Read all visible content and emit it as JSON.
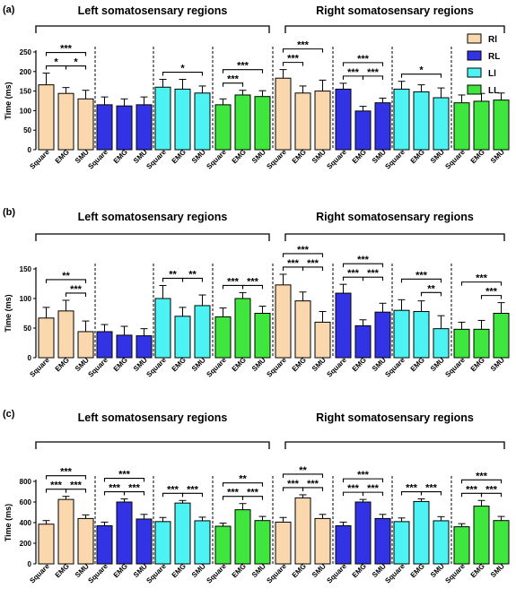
{
  "region_labels": {
    "left": "Left somatosensary regions",
    "right": "Right somatosensary regions"
  },
  "legend": [
    {
      "name": "Rl",
      "color": "#FAD7AC"
    },
    {
      "name": "RL",
      "color": "#3333E6"
    },
    {
      "name": "Ll",
      "color": "#4DF2F2"
    },
    {
      "name": "LL",
      "color": "#3EE63E"
    }
  ],
  "chart_data": [
    {
      "panel": "(a)",
      "type": "bar",
      "ylabel": "Time (ms)",
      "ylim": [
        0,
        250
      ],
      "yticks": [
        0,
        50,
        100,
        150,
        200,
        250
      ],
      "categories": [
        "Square",
        "EMG",
        "SMU"
      ],
      "groups": [
        {
          "series": "Rl",
          "side": "left",
          "values": [
            166,
            144,
            130
          ],
          "errors": [
            30,
            15,
            22
          ],
          "sig": [
            {
              "from": 0,
              "to": 2,
              "label": "***"
            },
            {
              "from": 0,
              "to": 1,
              "label": "*"
            },
            {
              "from": 1,
              "to": 2,
              "label": "*"
            }
          ]
        },
        {
          "series": "RL",
          "side": "left",
          "values": [
            115,
            112,
            115
          ],
          "errors": [
            20,
            18,
            20
          ],
          "sig": []
        },
        {
          "series": "Ll",
          "side": "left",
          "values": [
            160,
            155,
            145
          ],
          "errors": [
            20,
            25,
            18
          ],
          "sig": [
            {
              "from": 0,
              "to": 2,
              "label": "*"
            }
          ]
        },
        {
          "series": "LL",
          "side": "left",
          "values": [
            115,
            140,
            136
          ],
          "errors": [
            15,
            12,
            15
          ],
          "sig": [
            {
              "from": 0,
              "to": 2,
              "label": "***"
            },
            {
              "from": 0,
              "to": 1,
              "label": "***"
            }
          ]
        },
        {
          "series": "Rl",
          "side": "right",
          "values": [
            183,
            145,
            150
          ],
          "errors": [
            22,
            18,
            28
          ],
          "sig": [
            {
              "from": 0,
              "to": 2,
              "label": "***"
            },
            {
              "from": 0,
              "to": 1,
              "label": "***"
            }
          ]
        },
        {
          "series": "RL",
          "side": "right",
          "values": [
            155,
            99,
            120
          ],
          "errors": [
            15,
            12,
            12
          ],
          "sig": [
            {
              "from": 0,
              "to": 2,
              "label": "***"
            },
            {
              "from": 0,
              "to": 1,
              "label": "***"
            },
            {
              "from": 1,
              "to": 2,
              "label": "***"
            }
          ]
        },
        {
          "series": "Ll",
          "side": "right",
          "values": [
            155,
            148,
            133
          ],
          "errors": [
            20,
            18,
            25
          ],
          "sig": [
            {
              "from": 0,
              "to": 2,
              "label": "*"
            }
          ]
        },
        {
          "series": "LL",
          "side": "right",
          "values": [
            120,
            124,
            127
          ],
          "errors": [
            20,
            20,
            18
          ],
          "sig": []
        }
      ]
    },
    {
      "panel": "(b)",
      "type": "bar",
      "ylabel": "Time (ms)",
      "ylim": [
        0,
        150
      ],
      "yticks": [
        0,
        50,
        100,
        150
      ],
      "categories": [
        "Square",
        "EMG",
        "SMU"
      ],
      "groups": [
        {
          "series": "Rl",
          "side": "left",
          "values": [
            67,
            79,
            44
          ],
          "errors": [
            18,
            18,
            18
          ],
          "sig": [
            {
              "from": 0,
              "to": 2,
              "label": "**"
            },
            {
              "from": 1,
              "to": 2,
              "label": "***"
            }
          ]
        },
        {
          "series": "RL",
          "side": "left",
          "values": [
            44,
            38,
            37
          ],
          "errors": [
            12,
            15,
            12
          ],
          "sig": []
        },
        {
          "series": "Ll",
          "side": "left",
          "values": [
            100,
            70,
            88
          ],
          "errors": [
            22,
            15,
            18
          ],
          "sig": [
            {
              "from": 0,
              "to": 1,
              "label": "**"
            },
            {
              "from": 1,
              "to": 2,
              "label": "**"
            }
          ]
        },
        {
          "series": "LL",
          "side": "left",
          "values": [
            69,
            100,
            75
          ],
          "errors": [
            15,
            10,
            12
          ],
          "sig": [
            {
              "from": 0,
              "to": 1,
              "label": "***"
            },
            {
              "from": 1,
              "to": 2,
              "label": "***"
            }
          ]
        },
        {
          "series": "Rl",
          "side": "right",
          "values": [
            123,
            96,
            60
          ],
          "errors": [
            18,
            15,
            18
          ],
          "sig": [
            {
              "from": 0,
              "to": 2,
              "label": "***"
            },
            {
              "from": 0,
              "to": 1,
              "label": "***"
            },
            {
              "from": 1,
              "to": 2,
              "label": "***"
            }
          ]
        },
        {
          "series": "RL",
          "side": "right",
          "values": [
            109,
            54,
            77
          ],
          "errors": [
            15,
            10,
            15
          ],
          "sig": [
            {
              "from": 0,
              "to": 2,
              "label": "***"
            },
            {
              "from": 0,
              "to": 1,
              "label": "***"
            },
            {
              "from": 1,
              "to": 2,
              "label": "***"
            }
          ]
        },
        {
          "series": "Ll",
          "side": "right",
          "values": [
            80,
            78,
            49
          ],
          "errors": [
            18,
            18,
            22
          ],
          "sig": [
            {
              "from": 0,
              "to": 2,
              "label": "***"
            },
            {
              "from": 1,
              "to": 2,
              "label": "**"
            }
          ]
        },
        {
          "series": "LL",
          "side": "right",
          "values": [
            48,
            48,
            75
          ],
          "errors": [
            12,
            15,
            18
          ],
          "sig": [
            {
              "from": 0,
              "to": 2,
              "label": "***"
            },
            {
              "from": 1,
              "to": 2,
              "label": "***"
            }
          ]
        }
      ]
    },
    {
      "panel": "(c)",
      "type": "bar",
      "ylabel": "Time (ms)",
      "ylim": [
        0,
        800
      ],
      "yticks": [
        0,
        200,
        400,
        600,
        800
      ],
      "categories": [
        "Square",
        "EMG",
        "SMU"
      ],
      "groups": [
        {
          "series": "Rl",
          "side": "left",
          "values": [
            385,
            625,
            440
          ],
          "errors": [
            35,
            30,
            35
          ],
          "sig": [
            {
              "from": 0,
              "to": 2,
              "label": "***"
            },
            {
              "from": 0,
              "to": 1,
              "label": "***"
            },
            {
              "from": 1,
              "to": 2,
              "label": "***"
            }
          ]
        },
        {
          "series": "RL",
          "side": "left",
          "values": [
            370,
            600,
            435
          ],
          "errors": [
            35,
            30,
            45
          ],
          "sig": [
            {
              "from": 0,
              "to": 2,
              "label": "***"
            },
            {
              "from": 0,
              "to": 1,
              "label": "***"
            },
            {
              "from": 1,
              "to": 2,
              "label": "***"
            }
          ]
        },
        {
          "series": "Ll",
          "side": "left",
          "values": [
            410,
            590,
            418
          ],
          "errors": [
            40,
            25,
            35
          ],
          "sig": [
            {
              "from": 0,
              "to": 1,
              "label": "***"
            },
            {
              "from": 1,
              "to": 2,
              "label": "***"
            }
          ]
        },
        {
          "series": "LL",
          "side": "left",
          "values": [
            365,
            525,
            420
          ],
          "errors": [
            30,
            60,
            40
          ],
          "sig": [
            {
              "from": 0,
              "to": 2,
              "label": "**"
            },
            {
              "from": 0,
              "to": 1,
              "label": "***"
            },
            {
              "from": 1,
              "to": 2,
              "label": "***"
            }
          ]
        },
        {
          "series": "Rl",
          "side": "right",
          "values": [
            405,
            640,
            440
          ],
          "errors": [
            45,
            30,
            40
          ],
          "sig": [
            {
              "from": 0,
              "to": 2,
              "label": "**"
            },
            {
              "from": 0,
              "to": 1,
              "label": "***"
            },
            {
              "from": 1,
              "to": 2,
              "label": "***"
            }
          ]
        },
        {
          "series": "RL",
          "side": "right",
          "values": [
            370,
            600,
            440
          ],
          "errors": [
            35,
            25,
            40
          ],
          "sig": [
            {
              "from": 0,
              "to": 2,
              "label": "***"
            },
            {
              "from": 0,
              "to": 1,
              "label": "***"
            },
            {
              "from": 1,
              "to": 2,
              "label": "***"
            }
          ]
        },
        {
          "series": "Ll",
          "side": "right",
          "values": [
            410,
            605,
            418
          ],
          "errors": [
            35,
            25,
            40
          ],
          "sig": [
            {
              "from": 0,
              "to": 1,
              "label": "***"
            },
            {
              "from": 1,
              "to": 2,
              "label": "***"
            }
          ]
        },
        {
          "series": "LL",
          "side": "right",
          "values": [
            360,
            560,
            420
          ],
          "errors": [
            30,
            55,
            40
          ],
          "sig": [
            {
              "from": 0,
              "to": 2,
              "label": "***"
            },
            {
              "from": 0,
              "to": 1,
              "label": "***"
            },
            {
              "from": 1,
              "to": 2,
              "label": "***"
            }
          ]
        }
      ]
    }
  ]
}
